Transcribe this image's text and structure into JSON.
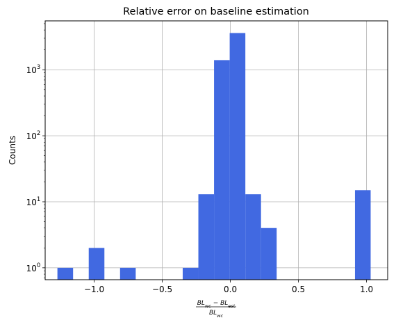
{
  "chart_data": {
    "type": "bar",
    "title": "Relative error on baseline estimation",
    "xlabel_numerator": "BL_wc − BL_est",
    "xlabel_denominator": "BL_wc",
    "ylabel": "Counts",
    "yscale": "log",
    "xlim": [
      -1.36,
      1.155
    ],
    "ylim": [
      0.66,
      5500
    ],
    "grid": true,
    "bar_color": "#4169e1",
    "x_ticks": [
      -1.0,
      -0.5,
      0.0,
      0.5,
      1.0
    ],
    "x_tick_labels": [
      "−1.0",
      "−0.5",
      "0.0",
      "0.5",
      "1.0"
    ],
    "y_ticks": [
      {
        "value": 1,
        "base": "10",
        "exp": "0"
      },
      {
        "value": 10,
        "base": "10",
        "exp": "1"
      },
      {
        "value": 100,
        "base": "10",
        "exp": "2"
      },
      {
        "value": 1000,
        "base": "10",
        "exp": "3"
      }
    ],
    "bins": [
      {
        "left": -1.27,
        "right": -1.155,
        "count": 1
      },
      {
        "left": -1.155,
        "right": -1.04,
        "count": 0
      },
      {
        "left": -1.04,
        "right": -0.925,
        "count": 2
      },
      {
        "left": -0.925,
        "right": -0.81,
        "count": 0
      },
      {
        "left": -0.81,
        "right": -0.695,
        "count": 1
      },
      {
        "left": -0.695,
        "right": -0.58,
        "count": 0
      },
      {
        "left": -0.58,
        "right": -0.465,
        "count": 0
      },
      {
        "left": -0.465,
        "right": -0.35,
        "count": 0
      },
      {
        "left": -0.35,
        "right": -0.235,
        "count": 1
      },
      {
        "left": -0.235,
        "right": -0.12,
        "count": 13
      },
      {
        "left": -0.12,
        "right": -0.005,
        "count": 1400
      },
      {
        "left": -0.005,
        "right": 0.11,
        "count": 3600
      },
      {
        "left": 0.11,
        "right": 0.225,
        "count": 13
      },
      {
        "left": 0.225,
        "right": 0.34,
        "count": 4
      },
      {
        "left": 0.34,
        "right": 0.455,
        "count": 0
      },
      {
        "left": 0.455,
        "right": 0.57,
        "count": 0
      },
      {
        "left": 0.57,
        "right": 0.685,
        "count": 0
      },
      {
        "left": 0.685,
        "right": 0.8,
        "count": 0
      },
      {
        "left": 0.8,
        "right": 0.915,
        "count": 0
      },
      {
        "left": 0.915,
        "right": 1.03,
        "count": 15
      }
    ]
  }
}
